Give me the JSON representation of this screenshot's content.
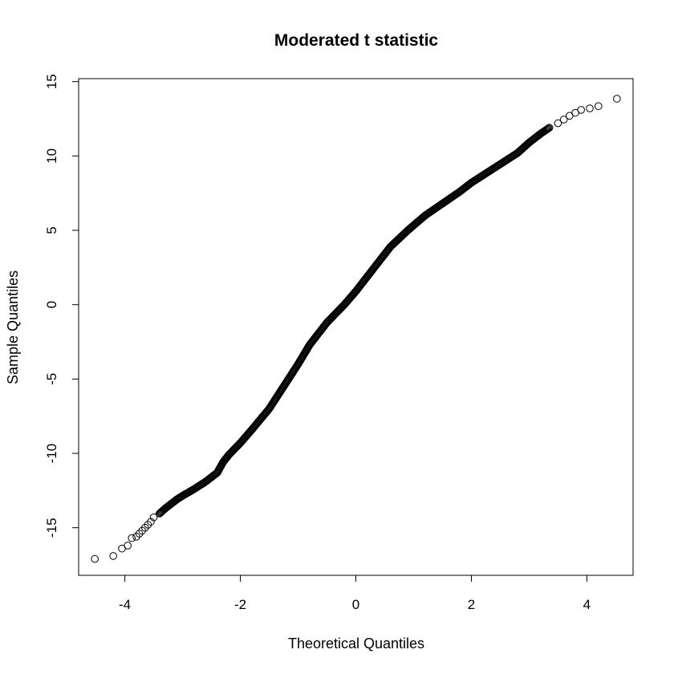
{
  "chart_data": {
    "type": "scatter",
    "title": "Moderated t statistic",
    "xlabel": "Theoretical Quantiles",
    "ylabel": "Sample Quantiles",
    "xlim": [
      -4.8,
      4.8
    ],
    "ylim": [
      -18.2,
      15.2
    ],
    "xticks": [
      -4,
      -2,
      0,
      2,
      4
    ],
    "xtick_labels": [
      "-4",
      "-2",
      "0",
      "2",
      "4"
    ],
    "yticks": [
      -15,
      -10,
      -5,
      0,
      5,
      10,
      15
    ],
    "ytick_labels": [
      "-15",
      "-10",
      "-5",
      "0",
      "5",
      "10",
      "15"
    ],
    "grid": false,
    "marker": "open-circle",
    "series": [
      {
        "points": [
          [
            -4.52,
            -17.1
          ],
          [
            -4.2,
            -16.9
          ],
          [
            -4.05,
            -16.4
          ],
          [
            -3.95,
            -16.2
          ],
          [
            -3.88,
            -15.7
          ],
          [
            -3.8,
            -15.6
          ],
          [
            -3.75,
            -15.4
          ],
          [
            -3.7,
            -15.2
          ],
          [
            -3.65,
            -15.0
          ],
          [
            -3.6,
            -14.8
          ],
          [
            -3.55,
            -14.6
          ],
          [
            -3.5,
            -14.3
          ],
          [
            -3.4,
            -14.05
          ],
          [
            -3.3,
            -13.7
          ],
          [
            -3.2,
            -13.4
          ],
          [
            -3.1,
            -13.1
          ],
          [
            -3.0,
            -12.85
          ],
          [
            -2.8,
            -12.4
          ],
          [
            -2.6,
            -11.9
          ],
          [
            -2.4,
            -11.3
          ],
          [
            -2.3,
            -10.6
          ],
          [
            -2.2,
            -10.1
          ],
          [
            -2.0,
            -9.3
          ],
          [
            -1.8,
            -8.4
          ],
          [
            -1.5,
            -7.0
          ],
          [
            -1.2,
            -5.2
          ],
          [
            -1.0,
            -4.0
          ],
          [
            -0.8,
            -2.7
          ],
          [
            -0.5,
            -1.2
          ],
          [
            -0.2,
            0.0
          ],
          [
            0.0,
            0.9
          ],
          [
            0.3,
            2.4
          ],
          [
            0.6,
            3.9
          ],
          [
            0.9,
            5.0
          ],
          [
            1.2,
            6.0
          ],
          [
            1.5,
            6.8
          ],
          [
            1.8,
            7.6
          ],
          [
            2.0,
            8.2
          ],
          [
            2.4,
            9.2
          ],
          [
            2.8,
            10.2
          ],
          [
            3.0,
            10.9
          ],
          [
            3.2,
            11.5
          ],
          [
            3.35,
            11.9
          ],
          [
            3.5,
            12.2
          ],
          [
            3.6,
            12.45
          ],
          [
            3.7,
            12.7
          ],
          [
            3.8,
            12.9
          ],
          [
            3.9,
            13.1
          ],
          [
            4.05,
            13.2
          ],
          [
            4.2,
            13.35
          ],
          [
            4.52,
            13.85
          ]
        ]
      }
    ]
  }
}
